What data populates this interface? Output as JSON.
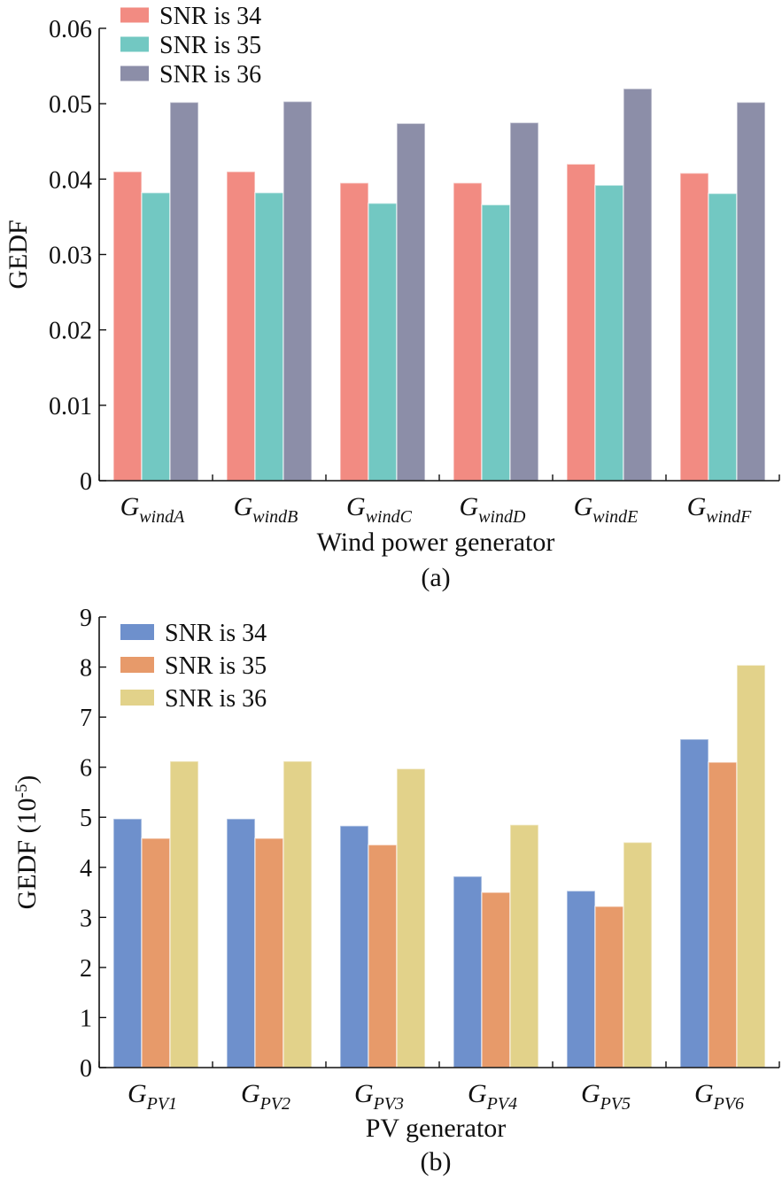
{
  "chart_data": [
    {
      "type": "bar",
      "categories": [
        {
          "base": "G",
          "sub": "windA"
        },
        {
          "base": "G",
          "sub": "windB"
        },
        {
          "base": "G",
          "sub": "windC"
        },
        {
          "base": "G",
          "sub": "windD"
        },
        {
          "base": "G",
          "sub": "windE"
        },
        {
          "base": "G",
          "sub": "windF"
        }
      ],
      "series": [
        {
          "name": "SNR is 34",
          "color": "#f28b82",
          "values": [
            0.041,
            0.041,
            0.0395,
            0.0395,
            0.042,
            0.0408
          ]
        },
        {
          "name": "SNR is 35",
          "color": "#72c8c2",
          "values": [
            0.0382,
            0.0382,
            0.0368,
            0.0366,
            0.0392,
            0.0381
          ]
        },
        {
          "name": "SNR is 36",
          "color": "#8c8ea8",
          "values": [
            0.0502,
            0.0503,
            0.0474,
            0.0475,
            0.052,
            0.0502
          ]
        }
      ],
      "ylim": [
        0,
        0.06
      ],
      "yticks": [
        "0",
        "0.01",
        "0.02",
        "0.03",
        "0.04",
        "0.05",
        "0.06"
      ],
      "xlabel": "Wind power generator",
      "ylabel": "GEDF",
      "ylabel_sup": "",
      "caption": "(a)",
      "legend_position": "top-left"
    },
    {
      "type": "bar",
      "categories": [
        {
          "base": "G",
          "sub": "PV1"
        },
        {
          "base": "G",
          "sub": "PV2"
        },
        {
          "base": "G",
          "sub": "PV3"
        },
        {
          "base": "G",
          "sub": "PV4"
        },
        {
          "base": "G",
          "sub": "PV5"
        },
        {
          "base": "G",
          "sub": "PV6"
        }
      ],
      "series": [
        {
          "name": "SNR is 34",
          "color": "#6e90cc",
          "values": [
            4.97,
            4.97,
            4.83,
            3.82,
            3.53,
            6.56
          ]
        },
        {
          "name": "SNR is 35",
          "color": "#e79a6a",
          "values": [
            4.58,
            4.58,
            4.45,
            3.5,
            3.22,
            6.1
          ]
        },
        {
          "name": "SNR is 36",
          "color": "#e2d28a",
          "values": [
            6.12,
            6.12,
            5.97,
            4.85,
            4.5,
            8.04
          ]
        }
      ],
      "ylim": [
        0,
        9
      ],
      "yticks": [
        "0",
        "1",
        "2",
        "3",
        "4",
        "5",
        "6",
        "7",
        "8",
        "9"
      ],
      "xlabel": "PV generator",
      "ylabel": "GEDF (10",
      "ylabel_sup": "-5",
      "ylabel_end": ")",
      "caption": "(b)",
      "legend_position": "top-left"
    }
  ]
}
